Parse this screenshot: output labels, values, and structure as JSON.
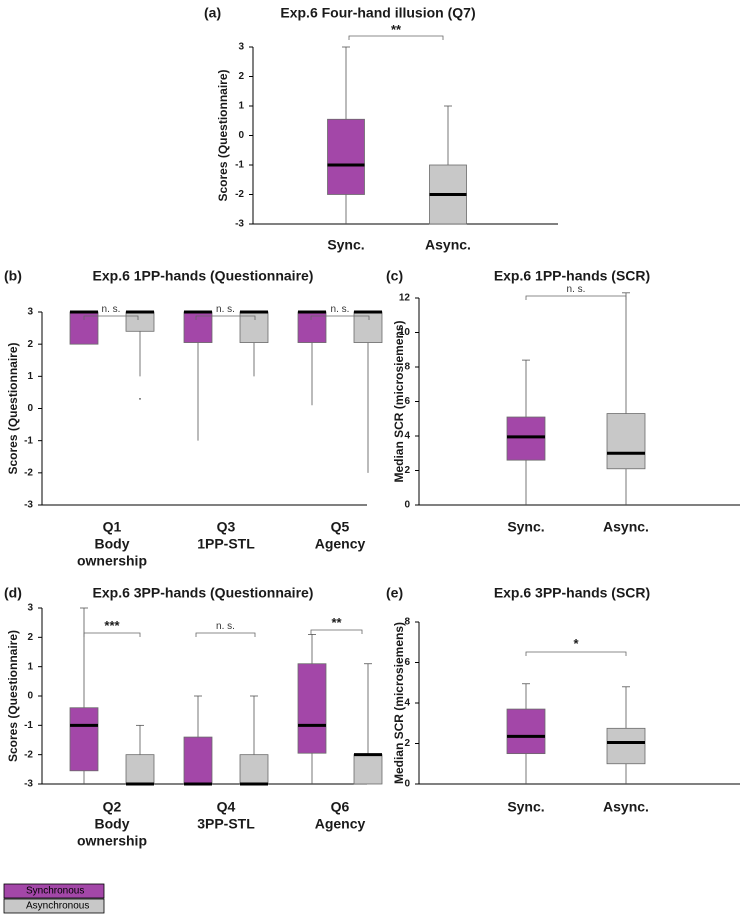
{
  "colors": {
    "sync": "#a347a8",
    "async": "#c8c8c8"
  },
  "legend": {
    "items": [
      {
        "label": "Synchronous",
        "series": "sync"
      },
      {
        "label": "Asynchronous",
        "series": "async"
      }
    ]
  },
  "chart_data": [
    {
      "panel": "(a)",
      "title": "Exp.6 Four-hand illusion (Q7)",
      "type": "box",
      "ylabel": "Scores (Questionnaire)",
      "ylim": [
        -3,
        3
      ],
      "yticks": [
        3,
        2,
        1,
        0,
        -1,
        -2,
        -3
      ],
      "groups": [
        {
          "name": "",
          "boxes": [
            {
              "series": "sync",
              "min": -3,
              "q1": -2,
              "median": -1,
              "q3": 0.55,
              "max": 3
            },
            {
              "series": "async",
              "min": -3,
              "q1": -3,
              "median": -2,
              "q3": -1,
              "max": 1
            }
          ]
        }
      ],
      "xlabels": [
        "Sync.",
        "Async."
      ],
      "significance": [
        {
          "group": 0,
          "label": "**"
        }
      ]
    },
    {
      "panel": "(b)",
      "title": "Exp.6 1PP-hands (Questionnaire)",
      "type": "box",
      "ylabel": "Scores (Questionnaire)",
      "ylim": [
        -3,
        3
      ],
      "yticks": [
        3,
        2,
        1,
        0,
        -1,
        -2,
        -3
      ],
      "groups": [
        {
          "name": [
            "Q1",
            "Body",
            "ownership"
          ],
          "boxes": [
            {
              "series": "sync",
              "min": 2,
              "q1": 2,
              "median": 3,
              "q3": 3,
              "max": 3
            },
            {
              "series": "async",
              "min": 1,
              "q1": 2.4,
              "median": 3,
              "q3": 3,
              "max": 3,
              "outliers": [
                0.3
              ]
            }
          ]
        },
        {
          "name": [
            "Q3",
            "1PP-STL"
          ],
          "boxes": [
            {
              "series": "sync",
              "min": -1,
              "q1": 2.05,
              "median": 3,
              "q3": 3,
              "max": 3
            },
            {
              "series": "async",
              "min": 1,
              "q1": 2.05,
              "median": 3,
              "q3": 3,
              "max": 3
            }
          ]
        },
        {
          "name": [
            "Q5",
            "Agency"
          ],
          "boxes": [
            {
              "series": "sync",
              "min": 0.1,
              "q1": 2.05,
              "median": 3,
              "q3": 3,
              "max": 3
            },
            {
              "series": "async",
              "min": -2,
              "q1": 2.05,
              "median": 3,
              "q3": 3,
              "max": 3
            }
          ]
        }
      ],
      "significance": [
        {
          "group": 0,
          "label": "n. s."
        },
        {
          "group": 1,
          "label": "n. s."
        },
        {
          "group": 2,
          "label": "n. s."
        }
      ]
    },
    {
      "panel": "(c)",
      "title": "Exp.6 1PP-hands (SCR)",
      "type": "box",
      "ylabel": "Median SCR (microsiemens)",
      "ylim": [
        0,
        12
      ],
      "yticks": [
        0,
        2,
        4,
        6,
        8,
        10,
        12
      ],
      "groups": [
        {
          "name": "",
          "boxes": [
            {
              "series": "sync",
              "min": 0,
              "q1": 2.6,
              "median": 3.95,
              "q3": 5.1,
              "max": 8.4
            },
            {
              "series": "async",
              "min": 0,
              "q1": 2.1,
              "median": 3,
              "q3": 5.3,
              "max": 12.3
            }
          ]
        }
      ],
      "xlabels": [
        "Sync.",
        "Async."
      ],
      "significance": [
        {
          "group": 0,
          "label": "n. s."
        }
      ]
    },
    {
      "panel": "(d)",
      "title": "Exp.6 3PP-hands (Questionnaire)",
      "type": "box",
      "ylabel": "Scores (Questionnaire)",
      "ylim": [
        -3,
        3
      ],
      "yticks": [
        3,
        2,
        1,
        0,
        -1,
        -2,
        -3
      ],
      "groups": [
        {
          "name": [
            "Q2",
            "Body",
            "ownership"
          ],
          "boxes": [
            {
              "series": "sync",
              "min": -3,
              "q1": -2.55,
              "median": -1,
              "q3": -0.4,
              "max": 3
            },
            {
              "series": "async",
              "min": -3,
              "q1": -3,
              "median": -3,
              "q3": -2,
              "max": -1
            }
          ]
        },
        {
          "name": [
            "Q4",
            "3PP-STL"
          ],
          "boxes": [
            {
              "series": "sync",
              "min": -3,
              "q1": -3,
              "median": -3,
              "q3": -1.4,
              "max": 0
            },
            {
              "series": "async",
              "min": -3,
              "q1": -3,
              "median": -3,
              "q3": -2,
              "max": 0
            }
          ]
        },
        {
          "name": [
            "Q6",
            "Agency"
          ],
          "boxes": [
            {
              "series": "sync",
              "min": -3,
              "q1": -1.95,
              "median": -1,
              "q3": 1.1,
              "max": 2.1
            },
            {
              "series": "async",
              "min": -3,
              "q1": -3,
              "median": -2,
              "q3": -2,
              "max": 1.1
            }
          ]
        }
      ],
      "significance": [
        {
          "group": 0,
          "label": "***"
        },
        {
          "group": 1,
          "label": "n. s."
        },
        {
          "group": 2,
          "label": "**"
        }
      ]
    },
    {
      "panel": "(e)",
      "title": "Exp.6 3PP-hands (SCR)",
      "type": "box",
      "ylabel": "Median SCR (microsiemens)",
      "ylim": [
        0,
        8
      ],
      "yticks": [
        0,
        2,
        4,
        6,
        8
      ],
      "groups": [
        {
          "name": "",
          "boxes": [
            {
              "series": "sync",
              "min": 0,
              "q1": 1.5,
              "median": 2.35,
              "q3": 3.7,
              "max": 4.95
            },
            {
              "series": "async",
              "min": 0,
              "q1": 1,
              "median": 2.05,
              "q3": 2.75,
              "max": 4.8
            }
          ]
        }
      ],
      "xlabels": [
        "Sync.",
        "Async."
      ],
      "significance": [
        {
          "group": 0,
          "label": "*"
        }
      ]
    }
  ]
}
